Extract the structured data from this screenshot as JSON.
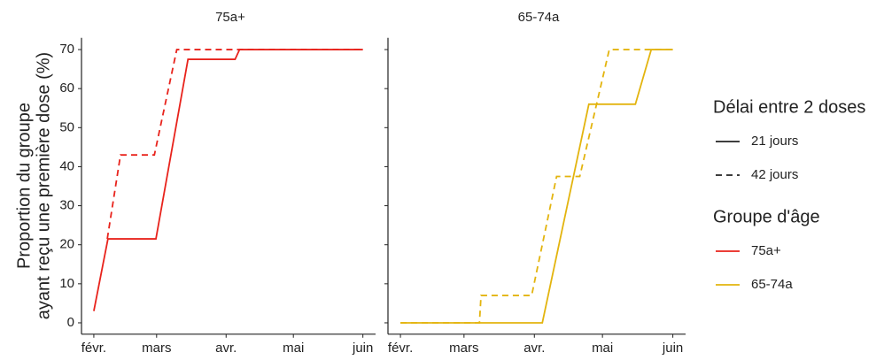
{
  "chart_data": {
    "type": "line",
    "ylabel": [
      "Proportion du groupe",
      "ayant reçu une première dose (%)"
    ],
    "ylim": [
      -2,
      73
    ],
    "yticks": [
      0,
      10,
      20,
      30,
      40,
      50,
      60,
      70
    ],
    "xlim": [
      -5.5,
      122.5
    ],
    "xticks": [
      {
        "value": 0,
        "label": "févr."
      },
      {
        "value": 28,
        "label": "mars"
      },
      {
        "value": 59,
        "label": "avr."
      },
      {
        "value": 89,
        "label": "mai"
      },
      {
        "value": 120,
        "label": "juin"
      }
    ],
    "legend": [
      {
        "title": "Délai entre 2 doses",
        "entries": [
          {
            "label": "21 jours",
            "dash": false
          },
          {
            "label": "42 jours",
            "dash": true
          }
        ]
      },
      {
        "title": "Groupe d'âge",
        "entries": [
          {
            "label": "75a+",
            "color": "#e8231c"
          },
          {
            "label": "65-74a",
            "color": "#e3b40e"
          }
        ]
      }
    ],
    "panels": [
      {
        "title": "75a+",
        "series": [
          {
            "color": "#e8231c",
            "dash": false,
            "x": [
              0,
              6.3,
              27.7,
              42,
              63,
              65,
              120
            ],
            "values": [
              3,
              21.5,
              21.5,
              67.5,
              67.5,
              70,
              70
            ]
          },
          {
            "color": "#e8231c",
            "dash": true,
            "x": [
              6,
              11.9,
              27,
              37,
              120
            ],
            "values": [
              21.5,
              43,
              43,
              70,
              70
            ]
          }
        ]
      },
      {
        "title": "65-74a",
        "series": [
          {
            "color": "#e3b40e",
            "dash": false,
            "x": [
              0,
              62.5,
              83,
              103.5,
              110.5,
              120
            ],
            "values": [
              0,
              0,
              56,
              56,
              70,
              70
            ]
          },
          {
            "color": "#e3b40e",
            "dash": true,
            "x": [
              0,
              34.8,
              35.5,
              57.8,
              68.8,
              79,
              92,
              120
            ],
            "values": [
              0,
              0,
              7,
              7,
              37.5,
              37.5,
              70,
              70
            ]
          }
        ]
      }
    ]
  }
}
